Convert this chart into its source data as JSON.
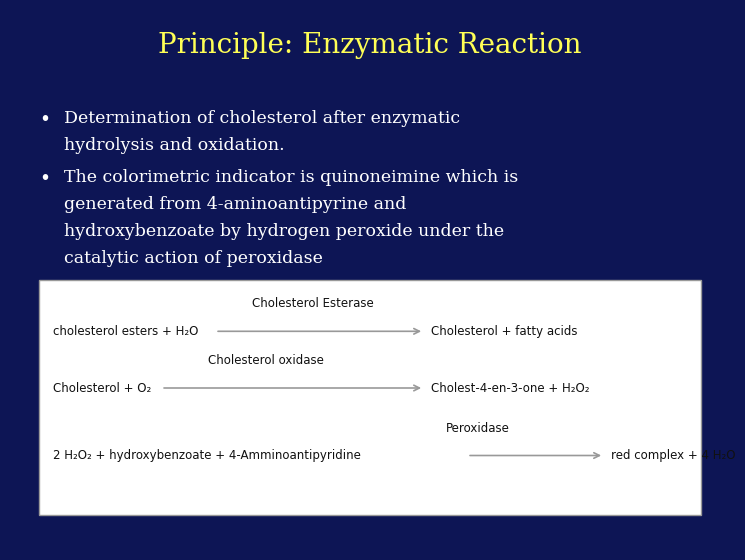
{
  "title": "Principle: Enzymatic Reaction",
  "title_color": "#FFFF55",
  "background_color": "#0D1555",
  "bullet1_line1": "Determination of cholesterol after enzymatic",
  "bullet1_line2": "hydrolysis and oxidation.",
  "bullet2_line1": "The colorimetric indicator is quinoneimine which is",
  "bullet2_line2": "generated from 4-aminoantipyrine and",
  "bullet2_line3": "hydroxybenzoate by hydrogen peroxide under the",
  "bullet2_line4": "catalytic action of peroxidase",
  "bullet_color": "#FFFFFF",
  "box_bg": "#FFFFFF",
  "box_border": "#999999",
  "rxn1_label": "Cholesterol Esterase",
  "rxn1_left": "cholesterol esters + H₂O",
  "rxn1_right": "Cholesterol + fatty acids",
  "rxn2_label": "Cholesterol oxidase",
  "rxn2_left": "Cholesterol + O₂",
  "rxn2_right": "Cholest-4-en-3-one + H₂O₂",
  "rxn3_label": "Peroxidase",
  "rxn3_left": "2 H₂O₂ + hydroxybenzoate + 4-Amminoantipyridine",
  "rxn3_right": "red complex + 4 H₂O"
}
